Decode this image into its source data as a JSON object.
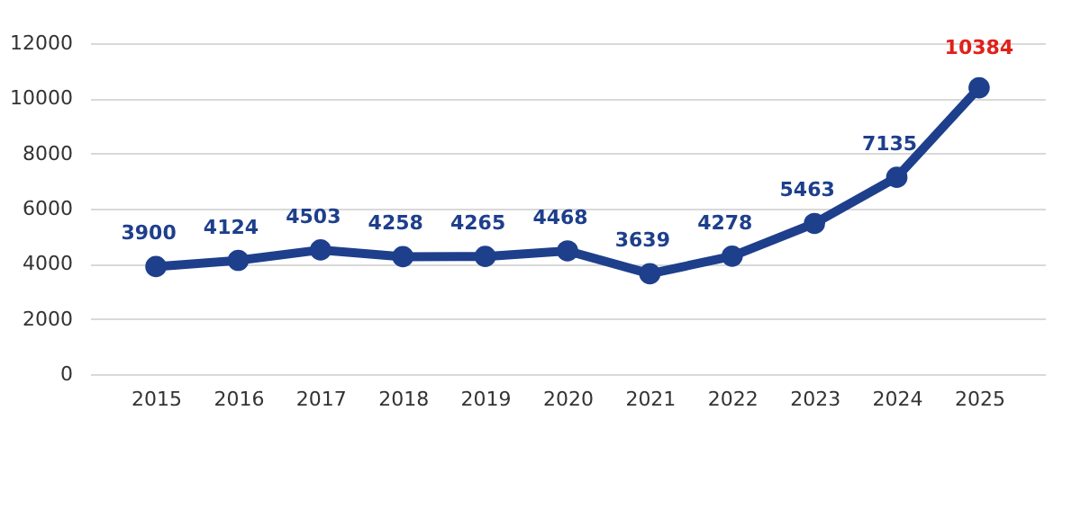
{
  "chart_data": {
    "type": "line",
    "categories": [
      "2015",
      "2016",
      "2017",
      "2018",
      "2019",
      "2020",
      "2021",
      "2022",
      "2023",
      "2024",
      "2025"
    ],
    "series": [
      {
        "color": "#1e3f8c",
        "values": [
          3900,
          4124,
          4503,
          4258,
          4265,
          4468,
          3639,
          4278,
          5463,
          7135,
          10384
        ],
        "value_labels": [
          "3900",
          "4124",
          "4503",
          "4258",
          "4265",
          "4468",
          "3639",
          "4278",
          "5463",
          "7135",
          null
        ]
      }
    ],
    "annotations": [
      {
        "text": "10384",
        "x": "2025",
        "y": 10384
      }
    ],
    "ylim": [
      0,
      12000
    ],
    "yticks": [
      0,
      2000,
      4000,
      6000,
      8000,
      10000,
      12000
    ],
    "grid": "y",
    "marker": "circle",
    "line_style": "solid"
  }
}
